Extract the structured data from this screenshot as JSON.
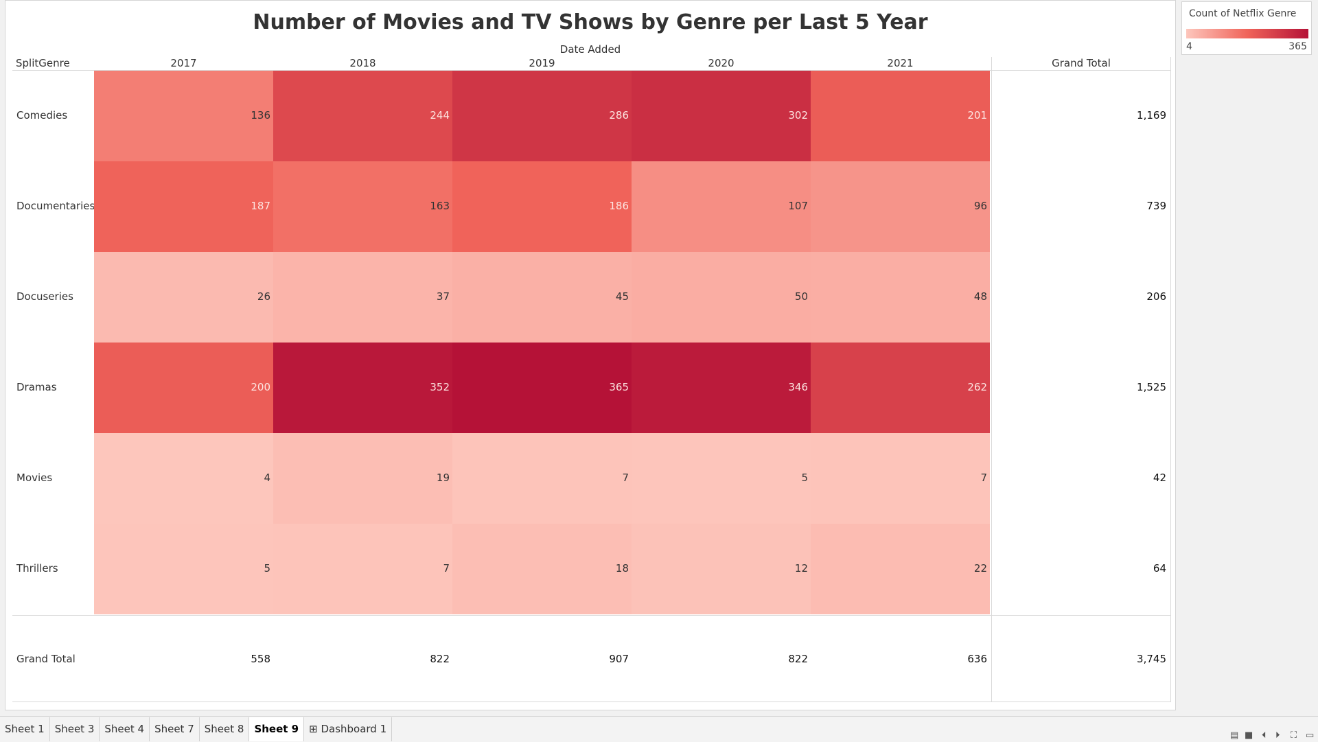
{
  "chart_data": {
    "type": "heatmap",
    "title": "Number of Movies and TV Shows by Genre per Last 5 Year",
    "column_group_label": "Date Added",
    "row_header": "SplitGenre",
    "columns": [
      "2017",
      "2018",
      "2019",
      "2020",
      "2021"
    ],
    "rows": [
      "Comedies",
      "Documentaries",
      "Docuseries",
      "Dramas",
      "Movies",
      "Thrillers"
    ],
    "values": [
      [
        136,
        244,
        286,
        302,
        201
      ],
      [
        187,
        163,
        186,
        107,
        96
      ],
      [
        26,
        37,
        45,
        50,
        48
      ],
      [
        200,
        352,
        365,
        346,
        262
      ],
      [
        4,
        19,
        7,
        5,
        7
      ],
      [
        5,
        7,
        18,
        12,
        22
      ]
    ],
    "grand_total_label": "Grand Total",
    "row_totals": [
      "1,169",
      "739",
      "206",
      "1,525",
      "42",
      "64"
    ],
    "column_totals": [
      "558",
      "822",
      "907",
      "822",
      "636"
    ],
    "overall_total": "3,745",
    "legend": {
      "title": "Count of Netflix Genre",
      "min": "4",
      "max": "365",
      "min_value": 4,
      "max_value": 365
    },
    "colors": {
      "low": "#fdc6bc",
      "mid": "#f0645a",
      "high": "#b51237"
    }
  },
  "tabs": [
    {
      "label": "Sheet 1",
      "active": false
    },
    {
      "label": "Sheet 3",
      "active": false
    },
    {
      "label": "Sheet 4",
      "active": false
    },
    {
      "label": "Sheet 7",
      "active": false
    },
    {
      "label": "Sheet 8",
      "active": false
    },
    {
      "label": "Sheet 9",
      "active": true
    },
    {
      "label": "Dashboard 1",
      "active": false,
      "icon": "dashboard-grid-icon"
    }
  ],
  "controls": {
    "icons": [
      "view-list-icon",
      "view-grid-icon",
      "prev-sheet-icon",
      "next-sheet-icon",
      "fullscreen-icon",
      "present-icon"
    ]
  }
}
